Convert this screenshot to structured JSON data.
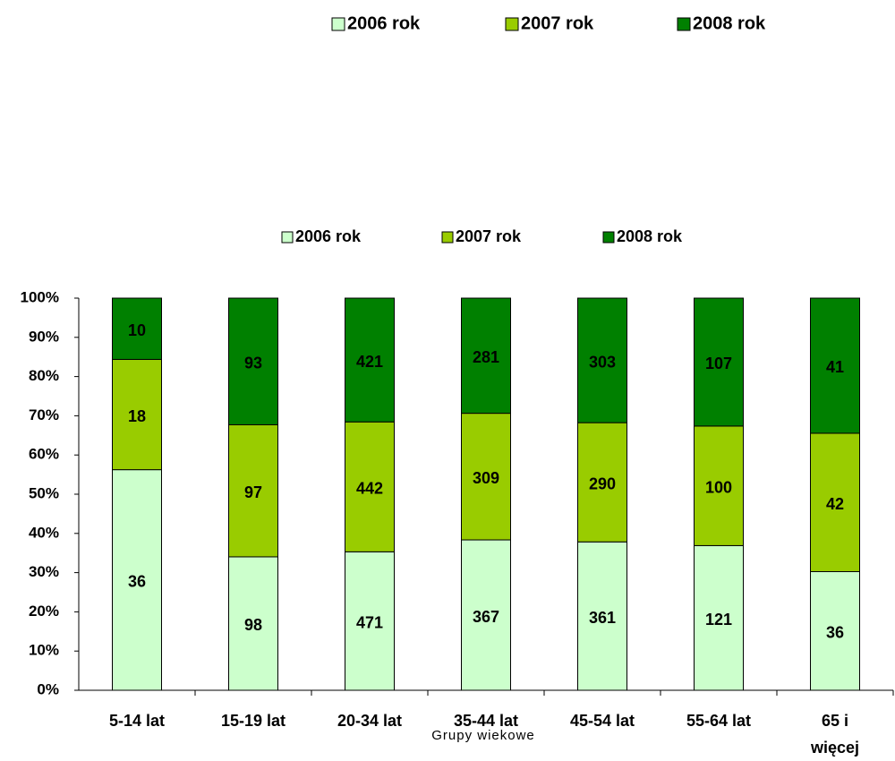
{
  "chart_data": {
    "type": "bar",
    "stacking": "percent",
    "x_label": "Grupy wiekowe",
    "categories": [
      "5-14 lat",
      "15-19 lat",
      "20-34 lat",
      "35-44 lat",
      "45-54 lat",
      "55-64 lat",
      "65 i\nwięcej"
    ],
    "series": [
      {
        "name": "2006 rok",
        "color": "#ccffcc",
        "values": [
          36,
          98,
          471,
          367,
          361,
          121,
          36
        ]
      },
      {
        "name": "2007 rok",
        "color": "#99cc00",
        "values": [
          18,
          97,
          442,
          309,
          290,
          100,
          42
        ]
      },
      {
        "name": "2008 rok",
        "color": "#008000",
        "values": [
          10,
          93,
          421,
          281,
          303,
          107,
          41
        ]
      }
    ],
    "ylim": [
      0,
      100
    ],
    "yticks": [
      {
        "value": 0,
        "label": "0%"
      },
      {
        "value": 10,
        "label": "10%"
      },
      {
        "value": 20,
        "label": "20%"
      },
      {
        "value": 30,
        "label": "30%"
      },
      {
        "value": 40,
        "label": "40%"
      },
      {
        "value": 50,
        "label": "50%"
      },
      {
        "value": 60,
        "label": "60%"
      },
      {
        "value": 70,
        "label": "70%"
      },
      {
        "value": 80,
        "label": "80%"
      },
      {
        "value": 90,
        "label": "90%"
      },
      {
        "value": 100,
        "label": "100%"
      }
    ],
    "legend": "top"
  }
}
